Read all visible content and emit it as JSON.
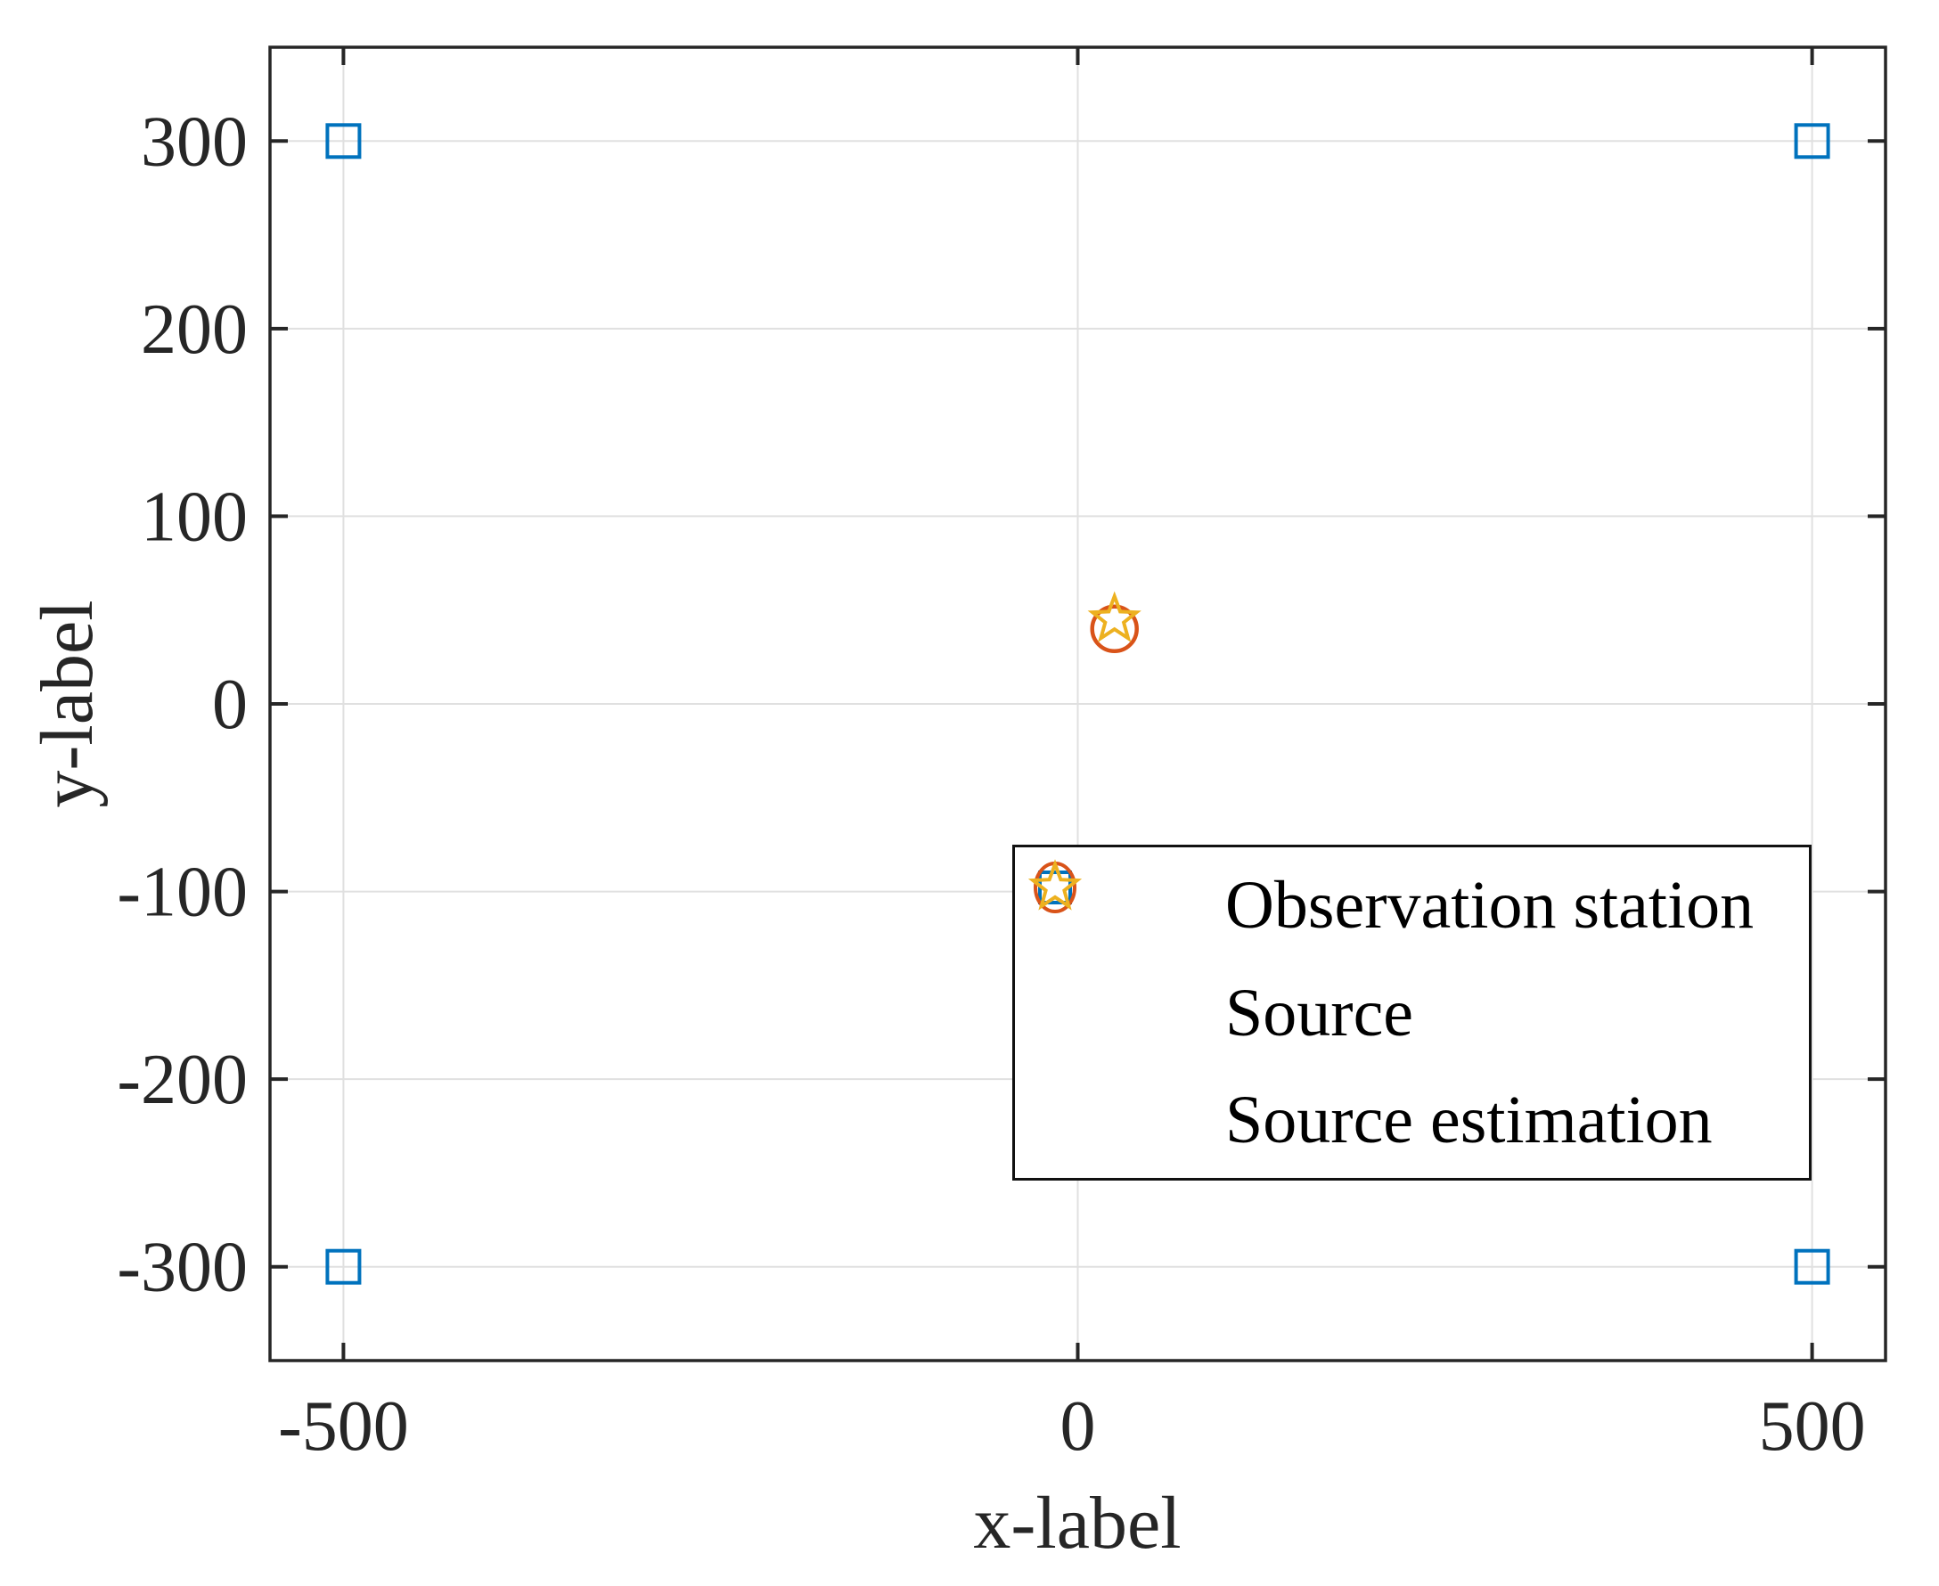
{
  "chart_data": {
    "type": "scatter",
    "title": "",
    "xlabel": "x-label",
    "ylabel": "y-label",
    "xlim": [
      -550,
      550
    ],
    "ylim": [
      -350,
      350
    ],
    "xticks": [
      -500,
      0,
      500
    ],
    "yticks": [
      -300,
      -200,
      -100,
      0,
      100,
      200,
      300
    ],
    "grid": true,
    "legend_position": "inside lower right",
    "series": [
      {
        "name": "Observation station",
        "marker": "square",
        "color": "#0072BD",
        "points": [
          [
            -500,
            300
          ],
          [
            500,
            300
          ],
          [
            -500,
            -300
          ],
          [
            500,
            -300
          ]
        ]
      },
      {
        "name": "Source",
        "marker": "circle",
        "color": "#D95319",
        "points": [
          [
            25,
            40
          ]
        ]
      },
      {
        "name": "Source estimation",
        "marker": "pentagram",
        "color": "#EDB120",
        "points": [
          [
            25,
            45
          ]
        ]
      }
    ]
  },
  "style": {
    "background": "#ffffff",
    "axis_color": "#262626",
    "grid_color": "#e0e0e0",
    "tick_label_color": "#262626",
    "legend_border_color": "#111111",
    "legend_text_color": "#000000"
  }
}
